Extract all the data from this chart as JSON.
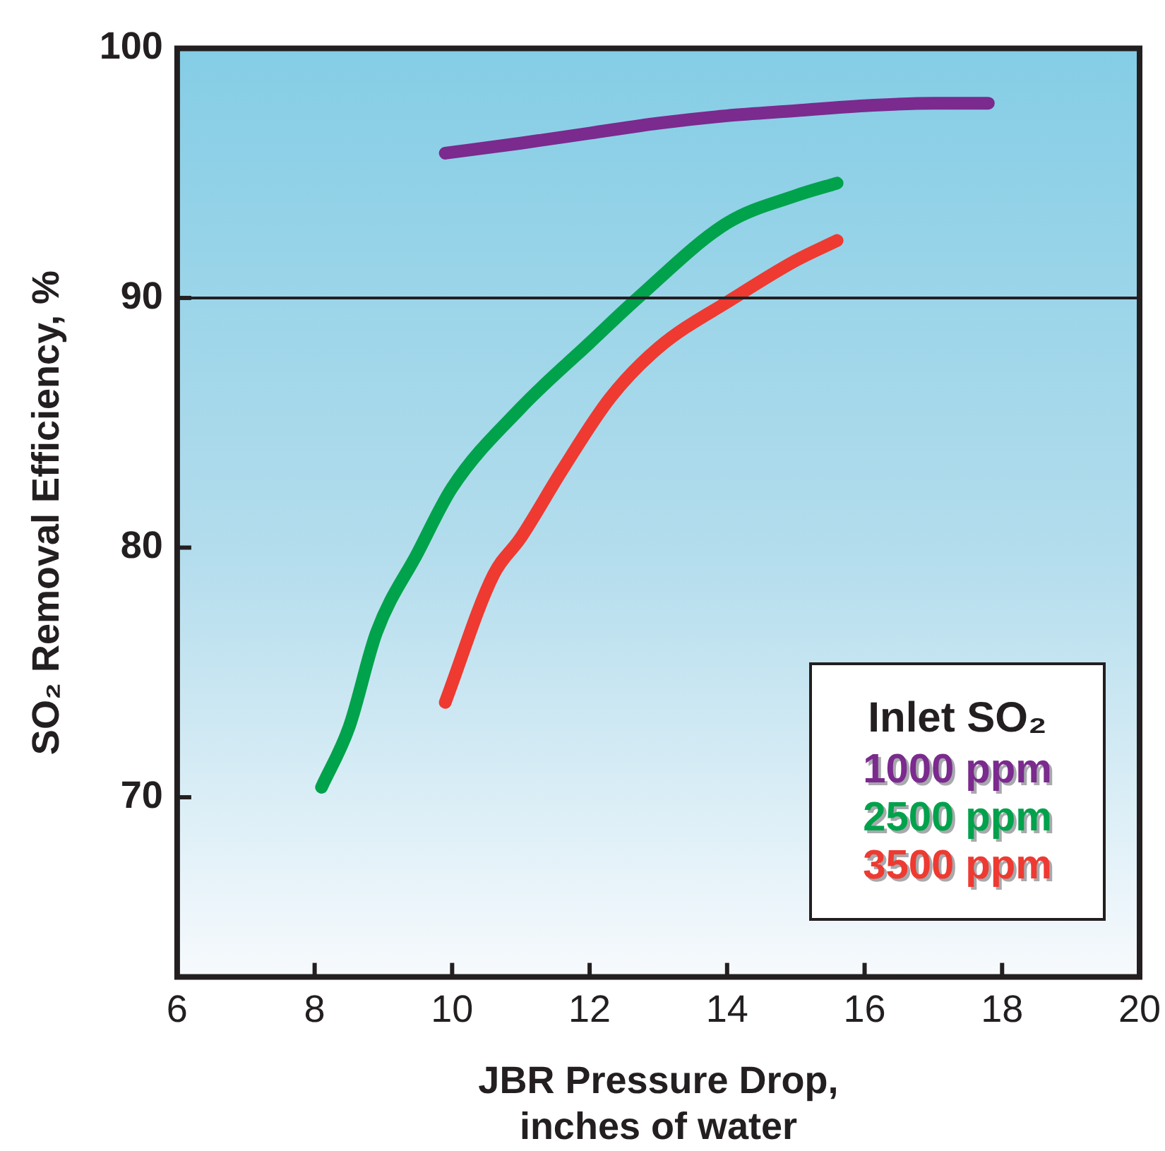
{
  "chart_data": {
    "type": "line",
    "xlabel": "JBR Pressure Drop, inches of water",
    "ylabel": "SO₂ Removal Efficiency, %",
    "legend_title": "Inlet SO₂",
    "legend": "bottom right",
    "xlim": [
      6,
      20
    ],
    "xticks": [
      6,
      8,
      10,
      12,
      14,
      16,
      18,
      20
    ],
    "ylim": [
      62.8,
      100
    ],
    "yticks": [
      70,
      80,
      90,
      100
    ],
    "grid": false,
    "marker": "none",
    "line_style": "solid",
    "ref_lines": [
      {
        "axis": "y",
        "value": 90,
        "color": "#231f20"
      }
    ],
    "series": [
      {
        "name": "1000 ppm",
        "color": "#7b2a8e",
        "x": [
          9.9,
          11,
          12,
          13,
          14,
          15,
          16,
          17,
          17.8
        ],
        "values": [
          95.8,
          96.2,
          96.6,
          97.0,
          97.3,
          97.5,
          97.7,
          97.8,
          97.8
        ]
      },
      {
        "name": "2500 ppm",
        "color": "#00a24b",
        "x": [
          8.1,
          8.5,
          8.9,
          9.5,
          10,
          11,
          12,
          12.7,
          14,
          15,
          15.6
        ],
        "values": [
          70.4,
          72.8,
          76.6,
          79.8,
          82.4,
          85.6,
          88.2,
          90,
          93.0,
          94.1,
          94.6
        ]
      },
      {
        "name": "3500 ppm",
        "color": "#ee3a31",
        "x": [
          9.9,
          10.6,
          11,
          11.6,
          12.3,
          13,
          14.1,
          15,
          15.6
        ],
        "values": [
          73.8,
          78.9,
          80.4,
          83.1,
          86.0,
          88.0,
          90,
          91.5,
          92.3
        ]
      }
    ]
  }
}
